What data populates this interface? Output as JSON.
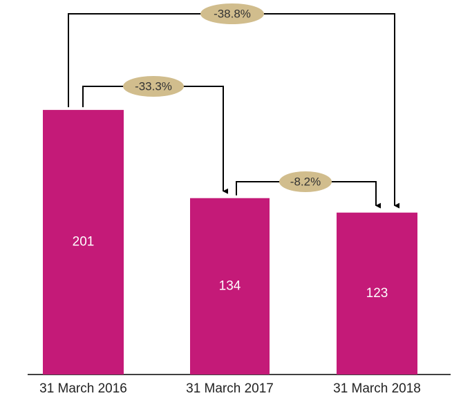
{
  "chart_data": {
    "type": "bar",
    "categories": [
      "31 March 2016",
      "31 March 2017",
      "31 March 2018"
    ],
    "values": [
      201,
      134,
      123
    ],
    "color": "#c41a78",
    "annotations": [
      "-38.8%",
      "-33.3%",
      "-8.2%"
    ],
    "annotation_color": "#d1bd8d"
  }
}
